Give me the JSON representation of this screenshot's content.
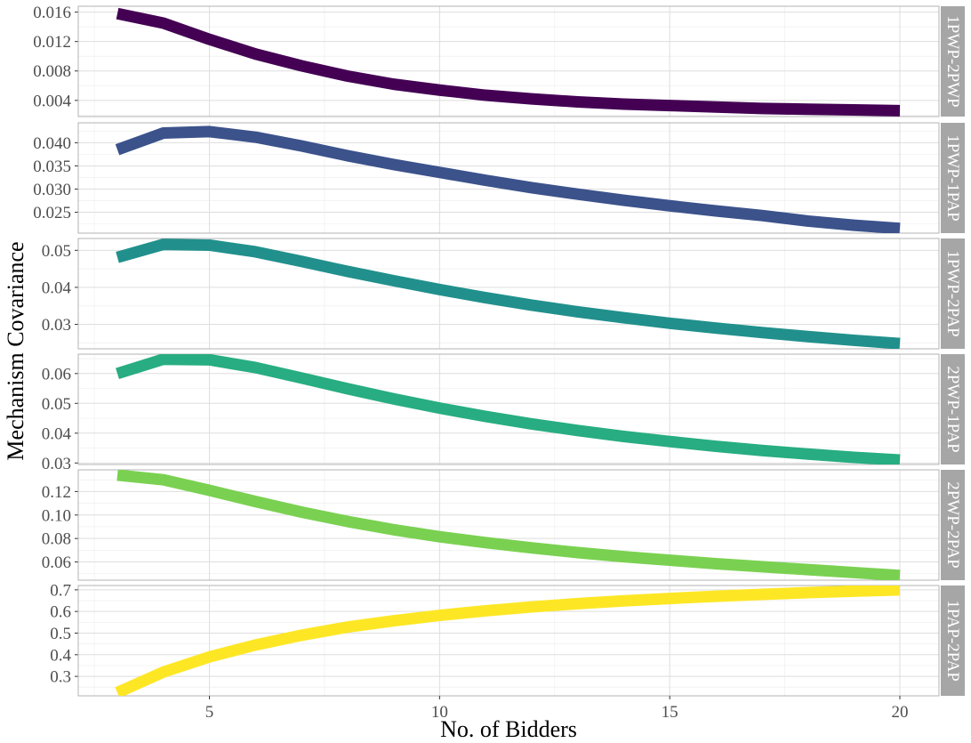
{
  "chart_data": {
    "type": "line",
    "layout": "faceted-vertical",
    "xlabel": "No. of Bidders",
    "ylabel": "Mechanism Covariance",
    "xlim": [
      2.15,
      20.85
    ],
    "x_ticks": [
      5,
      10,
      15,
      20
    ],
    "grid": true,
    "legend": "none",
    "x": [
      3,
      4,
      5,
      6,
      7,
      8,
      9,
      10,
      11,
      12,
      13,
      14,
      15,
      16,
      17,
      18,
      19,
      20
    ],
    "panels": [
      {
        "label": "1PWP-2PWP",
        "color": "#440154",
        "ylim": [
          0.0018,
          0.0168
        ],
        "y_ticks": [
          0.004,
          0.008,
          0.012,
          0.016
        ],
        "y_tick_labels": [
          "0.004",
          "0.008",
          "0.012",
          "0.016"
        ],
        "values": [
          0.0158,
          0.0145,
          0.0123,
          0.0103,
          0.0087,
          0.0073,
          0.0062,
          0.0054,
          0.0047,
          0.0042,
          0.0038,
          0.0035,
          0.0033,
          0.0031,
          0.0029,
          0.0028,
          0.0027,
          0.0026
        ]
      },
      {
        "label": "1PWP-1PAP",
        "color": "#3b528b",
        "ylim": [
          0.0205,
          0.0443
        ],
        "y_ticks": [
          0.025,
          0.03,
          0.035,
          0.04
        ],
        "y_tick_labels": [
          "0.025",
          "0.030",
          "0.035",
          "0.040"
        ],
        "values": [
          0.0385,
          0.0421,
          0.0424,
          0.0412,
          0.0393,
          0.0372,
          0.0353,
          0.0336,
          0.0319,
          0.0303,
          0.0289,
          0.0276,
          0.0264,
          0.0253,
          0.0243,
          0.0231,
          0.0222,
          0.0215
        ]
      },
      {
        "label": "1PWP-2PAP",
        "color": "#21908c",
        "ylim": [
          0.0234,
          0.0532
        ],
        "y_ticks": [
          0.03,
          0.04,
          0.05
        ],
        "y_tick_labels": [
          "0.03",
          "0.04",
          "0.05"
        ],
        "values": [
          0.0481,
          0.0516,
          0.0514,
          0.0496,
          0.047,
          0.0443,
          0.0418,
          0.0394,
          0.0372,
          0.0352,
          0.0334,
          0.0318,
          0.0303,
          0.029,
          0.0278,
          0.0267,
          0.0257,
          0.0248
        ]
      },
      {
        "label": "2PWP-1PAP",
        "color": "#27ad81",
        "ylim": [
          0.0295,
          0.0665
        ],
        "y_ticks": [
          0.03,
          0.04,
          0.05,
          0.06
        ],
        "y_tick_labels": [
          "0.03",
          "0.04",
          "0.05",
          "0.06"
        ],
        "values": [
          0.06,
          0.0648,
          0.0646,
          0.062,
          0.0585,
          0.0549,
          0.0515,
          0.0484,
          0.0456,
          0.0431,
          0.0409,
          0.0389,
          0.0372,
          0.0356,
          0.0342,
          0.033,
          0.0319,
          0.031
        ]
      },
      {
        "label": "2PWP-2PAP",
        "color": "#7ad151",
        "ylim": [
          0.0445,
          0.1385
        ],
        "y_ticks": [
          0.06,
          0.08,
          0.1,
          0.12
        ],
        "y_tick_labels": [
          "0.06",
          "0.08",
          "0.10",
          "0.12"
        ],
        "values": [
          0.134,
          0.13,
          0.121,
          0.1115,
          0.1025,
          0.0945,
          0.0875,
          0.0815,
          0.0765,
          0.072,
          0.068,
          0.0645,
          0.0615,
          0.0585,
          0.056,
          0.0535,
          0.051,
          0.0485
        ]
      },
      {
        "label": "1PAP-2PAP",
        "color": "#fde725",
        "ylim": [
          0.21,
          0.72
        ],
        "y_ticks": [
          0.3,
          0.4,
          0.5,
          0.6,
          0.7
        ],
        "y_tick_labels": [
          "0.3",
          "0.4",
          "0.5",
          "0.6",
          "0.7"
        ],
        "values": [
          0.225,
          0.32,
          0.39,
          0.445,
          0.49,
          0.528,
          0.557,
          0.582,
          0.603,
          0.621,
          0.636,
          0.649,
          0.66,
          0.67,
          0.679,
          0.687,
          0.694,
          0.7
        ]
      }
    ]
  }
}
